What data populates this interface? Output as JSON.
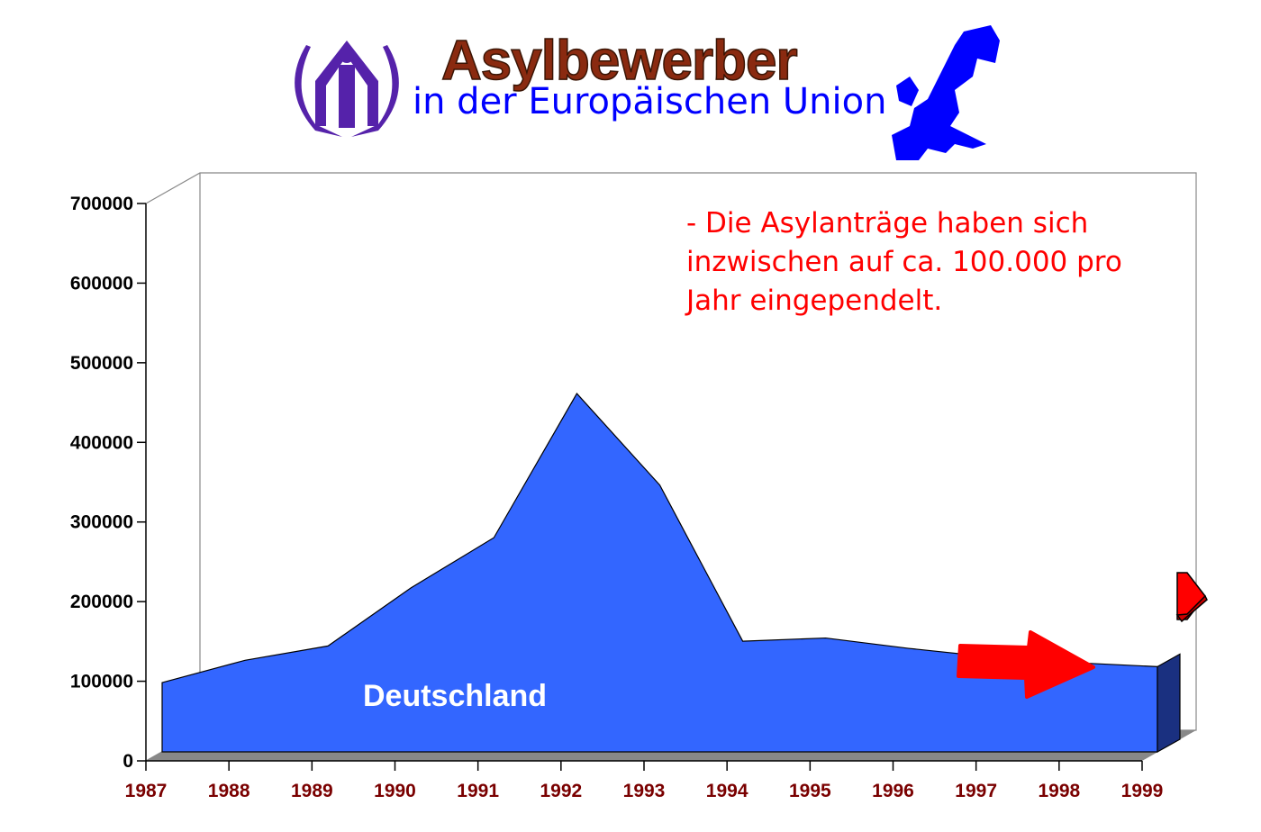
{
  "header": {
    "title": "Asylbewerber",
    "subtitle": "in der Europäischen Union",
    "logo": "unhcr-laurel-logo",
    "map": "eu-map-icon"
  },
  "colors": {
    "area": "#3366ff",
    "area_side": "#1a3080",
    "title": "#8a2a10",
    "subtitle": "#0000ff",
    "note": "#ff0000",
    "xtick": "#7a0000",
    "arrow": "#ff0000",
    "floor": "#888888"
  },
  "chart_data": {
    "type": "area",
    "three_d": true,
    "categories": [
      "1987",
      "1988",
      "1989",
      "1990",
      "1991",
      "1992",
      "1993",
      "1994",
      "1995",
      "1996",
      "1997",
      "1998",
      "1999"
    ],
    "series": [
      {
        "name": "Deutschland",
        "values": [
          87000,
          115000,
          133000,
          206000,
          269000,
          450000,
          335000,
          139000,
          143000,
          130000,
          119000,
          112000,
          107000
        ]
      }
    ],
    "yticks": [
      "0",
      "100000",
      "200000",
      "300000",
      "400000",
      "500000",
      "600000",
      "700000"
    ],
    "ylim": [
      0,
      700000
    ],
    "grid": false,
    "annotation": "- Die Asylanträge haben sich inzwischen auf ca. 100.000 pro Jahr eingependelt.",
    "annotation_lines": [
      "- Die Asylanträge haben sich",
      "inzwischen auf ca. 100.000 pro",
      "Jahr eingependelt."
    ]
  }
}
